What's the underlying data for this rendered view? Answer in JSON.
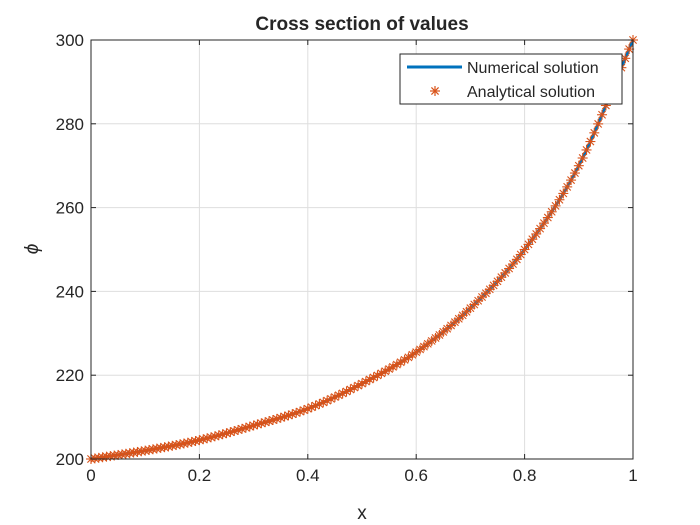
{
  "chart_data": {
    "type": "line",
    "title": "Cross section of values",
    "xlabel": "x",
    "ylabel": "ϕ",
    "xlim": [
      0,
      1
    ],
    "ylim": [
      200,
      300
    ],
    "xticks": [
      0,
      0.2,
      0.4,
      0.6,
      0.8,
      1
    ],
    "xtick_labels": [
      "0",
      "0.2",
      "0.4",
      "0.6",
      "0.8",
      "1"
    ],
    "yticks": [
      200,
      220,
      240,
      260,
      280,
      300
    ],
    "ytick_labels": [
      "200",
      "220",
      "240",
      "260",
      "280",
      "300"
    ],
    "grid": true,
    "legend_position": "top-right",
    "series": [
      {
        "name": "Numerical solution",
        "style": "line",
        "color": "#0072BD",
        "x": [
          0,
          0.1,
          0.2,
          0.3,
          0.4,
          0.5,
          0.6,
          0.7,
          0.8,
          0.9,
          1.0
        ],
        "y": [
          200,
          202,
          204.5,
          208,
          212,
          218,
          225.5,
          236,
          250,
          270,
          300
        ]
      },
      {
        "name": "Analytical solution",
        "style": "markers",
        "marker": "asterisk",
        "color": "#D95319",
        "x": [
          0,
          0.1,
          0.2,
          0.3,
          0.4,
          0.5,
          0.6,
          0.7,
          0.8,
          0.9,
          1.0
        ],
        "y": [
          200,
          202,
          204.5,
          208,
          212,
          218,
          225.5,
          236,
          250,
          270,
          300
        ]
      }
    ]
  }
}
